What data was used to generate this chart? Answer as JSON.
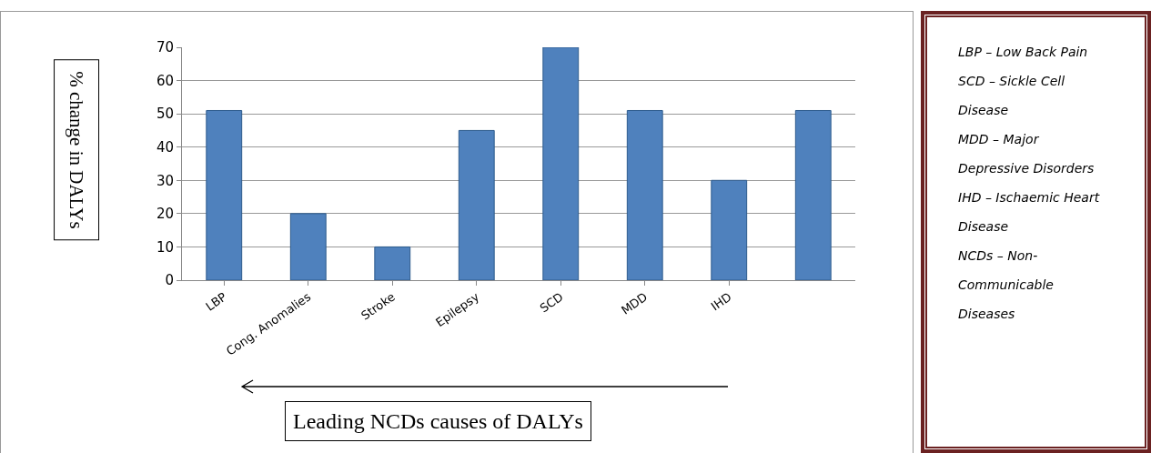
{
  "chart_data": {
    "type": "bar",
    "xlabel": "Leading NCDs causes of DALYs",
    "ylabel": "% change in DALYs",
    "categories": [
      "LBP",
      "Cong. Anomalies",
      "Stroke",
      "Epilepsy",
      "SCD",
      "MDD",
      "IHD",
      null
    ],
    "values": [
      51,
      20,
      10,
      45,
      70,
      51,
      30,
      51
    ],
    "color": "#4f81bd",
    "ylim": [
      0,
      70
    ],
    "yticks": [
      0,
      10,
      20,
      30,
      40,
      50,
      60,
      70
    ],
    "grid": "y",
    "legend": false,
    "annotations": [
      "LBP – Low Back Pain",
      "SCD – Sickle Cell Disease",
      "MDD – Major Depressive Disorders",
      "IHD – Ischaemic Heart Disease",
      "NCDs – Non-Communicable Diseases"
    ]
  }
}
